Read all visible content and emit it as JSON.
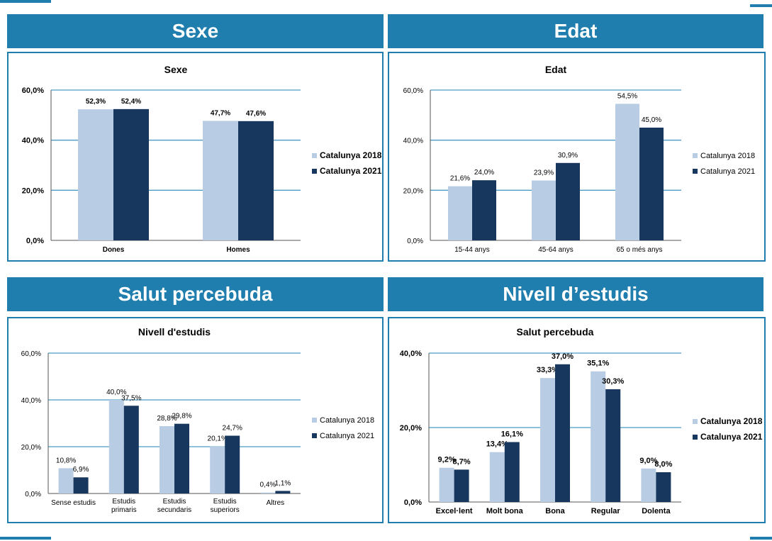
{
  "headers": {
    "top_left": "Sexe",
    "top_right": "Edat",
    "bottom_left": "Salut percebuda",
    "bottom_right": "Nivell d’estudis"
  },
  "colors": {
    "accent": "#1f7eae",
    "series_2018": "#b8cce4",
    "series_2021": "#17375e",
    "grid": "#4a9cc7"
  },
  "chart_data": [
    {
      "type": "bar",
      "title": "Sexe",
      "categories": [
        "Dones",
        "Homes"
      ],
      "series": [
        {
          "name": "Catalunya 2018",
          "values": [
            52.3,
            47.7
          ],
          "labels": [
            "52,3%",
            "47,7%"
          ]
        },
        {
          "name": "Catalunya 2021",
          "values": [
            52.4,
            47.6
          ],
          "labels": [
            "52,4%",
            "47,6%"
          ]
        }
      ],
      "ylim": [
        0,
        60
      ],
      "yticks": [
        "0,0%",
        "20,0%",
        "40,0%",
        "60,0%"
      ],
      "legend": "right"
    },
    {
      "type": "bar",
      "title": "Edat",
      "categories": [
        "15-44 anys",
        "45-64 anys",
        "65 o més anys"
      ],
      "series": [
        {
          "name": "Catalunya 2018",
          "values": [
            21.6,
            23.9,
            54.5
          ],
          "labels": [
            "21,6%",
            "23,9%",
            "54,5%"
          ]
        },
        {
          "name": "Catalunya 2021",
          "values": [
            24.0,
            30.9,
            45.0
          ],
          "labels": [
            "24,0%",
            "30,9%",
            "45,0%"
          ]
        }
      ],
      "ylim": [
        0,
        60
      ],
      "yticks": [
        "0,0%",
        "20,0%",
        "40,0%",
        "60,0%"
      ],
      "legend": "right"
    },
    {
      "type": "bar",
      "title": "Nivell d'estudis",
      "categories": [
        "Sense estudis",
        "Estudis primaris",
        "Estudis secundaris",
        "Estudis superiors",
        "Altres"
      ],
      "series": [
        {
          "name": "Catalunya 2018",
          "values": [
            10.8,
            40.0,
            28.8,
            20.1,
            0.4
          ],
          "labels": [
            "10,8%",
            "40,0%",
            "28,8%",
            "20,1%",
            "0,4%"
          ]
        },
        {
          "name": "Catalunya 2021",
          "values": [
            6.9,
            37.5,
            29.8,
            24.7,
            1.1
          ],
          "labels": [
            "6,9%",
            "37,5%",
            "29,8%",
            "24,7%",
            "1,1%"
          ]
        }
      ],
      "ylim": [
        0,
        60
      ],
      "yticks": [
        "0,0%",
        "20,0%",
        "40,0%",
        "60,0%"
      ],
      "legend": "right"
    },
    {
      "type": "bar",
      "title": "Salut percebuda",
      "categories": [
        "Excel·lent",
        "Molt bona",
        "Bona",
        "Regular",
        "Dolenta"
      ],
      "series": [
        {
          "name": "Catalunya 2018",
          "values": [
            9.2,
            13.4,
            33.3,
            35.1,
            9.0
          ],
          "labels": [
            "9,2%",
            "13,4%",
            "33,3%",
            "35,1%",
            "9,0%"
          ]
        },
        {
          "name": "Catalunya 2021",
          "values": [
            8.7,
            16.1,
            37.0,
            30.3,
            8.0
          ],
          "labels": [
            "8,7%",
            "16,1%",
            "37,0%",
            "30,3%",
            "8,0%"
          ]
        }
      ],
      "ylim": [
        0,
        40
      ],
      "yticks": [
        "0,0%",
        "20,0%",
        "40,0%"
      ],
      "legend": "right"
    }
  ]
}
